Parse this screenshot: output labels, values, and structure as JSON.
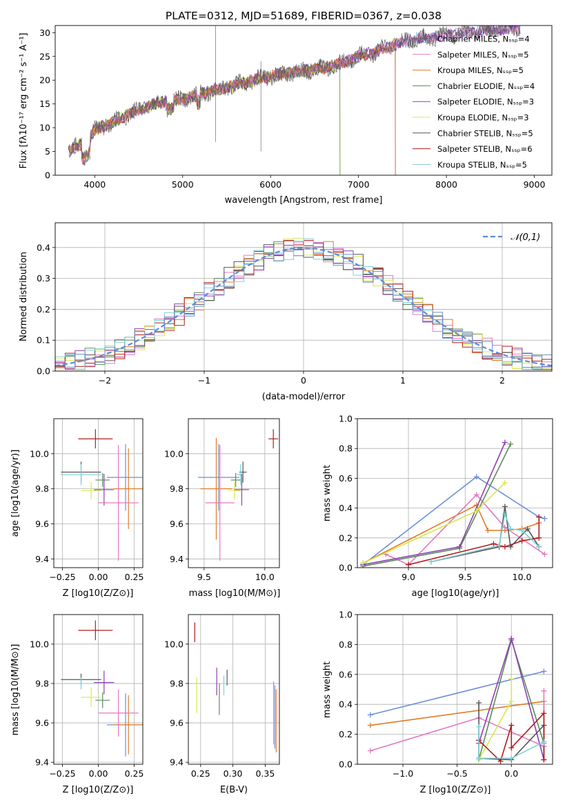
{
  "title": "PLATE=0312, MJD=51689, FIBERID=0367, z=0.038",
  "colors": {
    "c0": "#e377c2",
    "c1": "#e07b26",
    "c2": "#5a8a5a",
    "c3": "#8e3fb0",
    "c4": "#d8e84a",
    "c5": "#555555",
    "c6": "#b01c1c",
    "c7": "#80d0d8",
    "c8": "#6a8fd8",
    "grid": "#b0b0b0"
  },
  "chart_data": [
    {
      "type": "line",
      "title": "PLATE=0312, MJD=51689, FIBERID=0367, z=0.038",
      "xlabel": "wavelength [Angstrom, rest frame]",
      "ylabel": "Flux [fλ10⁻¹⁷ erg cm⁻² s⁻¹ A⁻¹]",
      "xlim": [
        3550,
        9200
      ],
      "ylim": [
        0,
        31.5
      ],
      "xticks": [
        "4000",
        "5000",
        "6000",
        "7000",
        "8000",
        "9000"
      ],
      "yticks": [
        "0",
        "5",
        "10",
        "15",
        "20",
        "25",
        "30"
      ],
      "legend_position": "top-right",
      "series": [
        {
          "name": "Chabrier MILES, N_SSP=4",
          "color": "#5a5a5a"
        },
        {
          "name": "Salpeter MILES, N_SSP=5",
          "color": "#e377c2"
        },
        {
          "name": "Kroupa MILES, N_SSP=5",
          "color": "#e07b26"
        },
        {
          "name": "Chabrier ELODIE, N_SSP=4",
          "color": "#5a8a5a"
        },
        {
          "name": "Salpeter ELODIE, N_SSP=3",
          "color": "#8e3fb0"
        },
        {
          "name": "Kroupa ELODIE, N_SSP=3",
          "color": "#d8e84a"
        },
        {
          "name": "Chabrier STELIB, N_SSP=5",
          "color": "#555555"
        },
        {
          "name": "Salpeter STELIB, N_SSP=6",
          "color": "#b01c1c"
        },
        {
          "name": "Kroupa STELIB, N_SSP=5",
          "color": "#80d0d8"
        }
      ],
      "continuum": {
        "x": [
          3700,
          3800,
          3900,
          4000,
          4200,
          4400,
          4600,
          4800,
          5000,
          5200,
          5400,
          5600,
          5800,
          6000,
          6200,
          6400,
          6600,
          6800,
          7000,
          7200,
          7400,
          7600,
          7800,
          8000,
          8200,
          8400,
          8600,
          8800
        ],
        "y": [
          5,
          6,
          7,
          9.5,
          11,
          13,
          14.5,
          15.5,
          16,
          17,
          18,
          19,
          20,
          20.8,
          21.5,
          22,
          22.5,
          23.5,
          25,
          26,
          27.5,
          28.5,
          29,
          29.5,
          30,
          30.3,
          30.6,
          31
        ]
      }
    },
    {
      "type": "bar",
      "xlabel": "(data-model)/error",
      "ylabel": "Normed distribution",
      "xlim": [
        -2.5,
        2.5
      ],
      "ylim": [
        0,
        0.48
      ],
      "xticks": [
        "−2",
        "−1",
        "0",
        "1",
        "2"
      ],
      "yticks": [
        "0.0",
        "0.1",
        "0.2",
        "0.3",
        "0.4"
      ],
      "legend": "𝒩(0,1)",
      "legend_position": "top-right",
      "bin_width": 0.1
    },
    {
      "type": "scatter",
      "xlabel": "Z [log10(Z/Z⊙)]",
      "ylabel": "age  [log10(age/yr)]",
      "xlim": [
        -0.31,
        0.31
      ],
      "ylim": [
        9.35,
        10.2
      ],
      "xticks": [
        "−0.25",
        "0.00",
        "0.25"
      ],
      "yticks": [
        "9.4",
        "9.6",
        "9.8",
        "10.0"
      ],
      "points": [
        {
          "x": -0.02,
          "y": 10.085,
          "xerr": 0.12,
          "yerr": 0.055,
          "color": "#b01c1c"
        },
        {
          "x": -0.12,
          "y": 9.895,
          "xerr": 0.14,
          "yerr": 0.06,
          "color": "#555555"
        },
        {
          "x": -0.12,
          "y": 9.88,
          "xerr": 0.14,
          "yerr": 0.06,
          "color": "#80d0d8"
        },
        {
          "x": 0.03,
          "y": 9.85,
          "xerr": 0.05,
          "yerr": 0.04,
          "color": "#5a8a5a"
        },
        {
          "x": -0.05,
          "y": 9.79,
          "xerr": 0.07,
          "yerr": 0.05,
          "color": "#d8e84a"
        },
        {
          "x": 0.04,
          "y": 9.795,
          "xerr": 0.07,
          "yerr": 0.09,
          "color": "#8e3fb0"
        },
        {
          "x": 0.19,
          "y": 9.865,
          "xerr": 0.13,
          "yerr": 0.19,
          "color": "#6a8fd8"
        },
        {
          "x": 0.21,
          "y": 9.8,
          "xerr": 0.1,
          "yerr": 0.23,
          "color": "#e07b26"
        },
        {
          "x": 0.14,
          "y": 9.72,
          "xerr": 0.14,
          "yerr": 0.33,
          "color": "#e377c2"
        }
      ]
    },
    {
      "type": "scatter",
      "xlabel": "mass [log10(M/M⊙)]",
      "ylabel": "",
      "xlim": [
        9.37,
        10.12
      ],
      "ylim": [
        9.35,
        10.2
      ],
      "xticks": [
        "9.5",
        "10.0"
      ],
      "yticks": [
        "9.4",
        "9.6",
        "9.8",
        "10.0"
      ],
      "points": [
        {
          "x": 10.07,
          "y": 10.085,
          "xerr": 0.04,
          "yerr": 0.055,
          "color": "#b01c1c"
        },
        {
          "x": 9.82,
          "y": 9.895,
          "xerr": 0.03,
          "yerr": 0.06,
          "color": "#555555"
        },
        {
          "x": 9.8,
          "y": 9.88,
          "xerr": 0.03,
          "yerr": 0.06,
          "color": "#80d0d8"
        },
        {
          "x": 9.76,
          "y": 9.85,
          "xerr": 0.04,
          "yerr": 0.04,
          "color": "#5a8a5a"
        },
        {
          "x": 9.75,
          "y": 9.79,
          "xerr": 0.05,
          "yerr": 0.05,
          "color": "#d8e84a"
        },
        {
          "x": 9.81,
          "y": 9.795,
          "xerr": 0.06,
          "yerr": 0.09,
          "color": "#8e3fb0"
        },
        {
          "x": 9.62,
          "y": 9.865,
          "xerr": 0.17,
          "yerr": 0.19,
          "color": "#6a8fd8"
        },
        {
          "x": 9.6,
          "y": 9.8,
          "xerr": 0.13,
          "yerr": 0.29,
          "color": "#e07b26"
        },
        {
          "x": 9.63,
          "y": 9.72,
          "xerr": 0.12,
          "yerr": 0.33,
          "color": "#e377c2"
        }
      ]
    },
    {
      "type": "line",
      "xlabel": "age  [log10(age/yr)]",
      "ylabel": "mass weight",
      "xlim": [
        8.55,
        10.27
      ],
      "ylim": [
        0,
        1.0
      ],
      "xticks": [
        "9.0",
        "9.5",
        "10.0"
      ],
      "yticks": [
        "0.0",
        "0.2",
        "0.4",
        "0.6",
        "0.8",
        "1.0"
      ],
      "series": [
        {
          "color": "#6a8fd8",
          "x": [
            8.6,
            9.6,
            10.15,
            10.2
          ],
          "y": [
            0.02,
            0.61,
            0.34,
            0.33
          ]
        },
        {
          "color": "#e07b26",
          "x": [
            8.6,
            9.6,
            9.7,
            9.85,
            10.0,
            10.15
          ],
          "y": [
            0.03,
            0.42,
            0.25,
            0.25,
            0.26,
            0.3
          ]
        },
        {
          "color": "#e377c2",
          "x": [
            8.8,
            9.0,
            9.6,
            9.85,
            10.2
          ],
          "y": [
            0.09,
            0.02,
            0.49,
            0.27,
            0.09
          ]
        },
        {
          "color": "#5a8a5a",
          "x": [
            8.6,
            9.45,
            9.9
          ],
          "y": [
            0.01,
            0.13,
            0.83
          ]
        },
        {
          "color": "#8e3fb0",
          "x": [
            8.6,
            9.45,
            9.85
          ],
          "y": [
            0.02,
            0.14,
            0.84
          ]
        },
        {
          "color": "#d8e84a",
          "x": [
            8.6,
            9.6,
            9.85
          ],
          "y": [
            0.03,
            0.38,
            0.57
          ]
        },
        {
          "color": "#555555",
          "x": [
            9.2,
            9.8,
            9.85,
            9.9,
            10.05,
            10.15
          ],
          "y": [
            0.04,
            0.14,
            0.41,
            0.14,
            0.26,
            0.14
          ]
        },
        {
          "color": "#b01c1c",
          "x": [
            9.0,
            9.75,
            9.85,
            10.0,
            10.15,
            10.15
          ],
          "y": [
            0.02,
            0.16,
            0.14,
            0.18,
            0.2,
            0.34
          ]
        },
        {
          "color": "#80d0d8",
          "x": [
            9.2,
            9.8,
            9.85,
            9.9,
            10.0,
            10.15
          ],
          "y": [
            0.04,
            0.15,
            0.36,
            0.26,
            0.25,
            0.14
          ]
        }
      ]
    },
    {
      "type": "scatter",
      "xlabel": "Z [log10(Z/Z⊙)]",
      "ylabel": "mass [log10(M/M⊙)]",
      "xlim": [
        -0.31,
        0.31
      ],
      "ylim": [
        9.39,
        10.15
      ],
      "xticks": [
        "−0.25",
        "0.00",
        "0.25"
      ],
      "yticks": [
        "9.4",
        "9.6",
        "9.8",
        "10.0"
      ],
      "points": [
        {
          "x": -0.02,
          "y": 10.07,
          "xerr": 0.12,
          "yerr": 0.05,
          "color": "#b01c1c"
        },
        {
          "x": -0.12,
          "y": 9.82,
          "xerr": 0.14,
          "yerr": 0.03,
          "color": "#555555"
        },
        {
          "x": -0.12,
          "y": 9.8,
          "xerr": 0.14,
          "yerr": 0.03,
          "color": "#80d0d8"
        },
        {
          "x": 0.03,
          "y": 9.715,
          "xerr": 0.05,
          "yerr": 0.04,
          "color": "#5a8a5a"
        },
        {
          "x": -0.05,
          "y": 9.73,
          "xerr": 0.07,
          "yerr": 0.05,
          "color": "#d8e84a"
        },
        {
          "x": 0.04,
          "y": 9.805,
          "xerr": 0.07,
          "yerr": 0.06,
          "color": "#8e3fb0"
        },
        {
          "x": 0.19,
          "y": 9.59,
          "xerr": 0.13,
          "yerr": 0.16,
          "color": "#6a8fd8"
        },
        {
          "x": 0.21,
          "y": 9.59,
          "xerr": 0.1,
          "yerr": 0.15,
          "color": "#e07b26"
        },
        {
          "x": 0.14,
          "y": 9.65,
          "xerr": 0.14,
          "yerr": 0.12,
          "color": "#e377c2"
        }
      ]
    },
    {
      "type": "scatter",
      "xlabel": "E(B-V)",
      "ylabel": "",
      "xlim": [
        0.231,
        0.372
      ],
      "ylim": [
        9.39,
        10.15
      ],
      "xticks": [
        "0.25",
        "0.30",
        "0.35"
      ],
      "yticks": [
        "9.4",
        "9.6",
        "9.8",
        "10.0"
      ],
      "points": [
        {
          "x": 0.241,
          "y": 10.06,
          "yerr": 0.05,
          "color": "#b01c1c"
        },
        {
          "x": 0.244,
          "y": 9.74,
          "yerr": 0.09,
          "color": "#d8e84a"
        },
        {
          "x": 0.275,
          "y": 9.81,
          "yerr": 0.07,
          "color": "#8e3fb0"
        },
        {
          "x": 0.279,
          "y": 9.72,
          "yerr": 0.08,
          "color": "#5a8a5a"
        },
        {
          "x": 0.286,
          "y": 9.79,
          "yerr": 0.05,
          "color": "#80d0d8"
        },
        {
          "x": 0.291,
          "y": 9.83,
          "yerr": 0.04,
          "color": "#555555"
        },
        {
          "x": 0.363,
          "y": 9.65,
          "yerr": 0.16,
          "color": "#e377c2"
        },
        {
          "x": 0.365,
          "y": 9.63,
          "yerr": 0.16,
          "color": "#6a8fd8"
        },
        {
          "x": 0.367,
          "y": 9.61,
          "yerr": 0.16,
          "color": "#e07b26"
        }
      ]
    },
    {
      "type": "line",
      "xlabel": "Z [log10(Z/Z⊙)]",
      "ylabel": "mass weight",
      "xlim": [
        -1.42,
        0.38
      ],
      "ylim": [
        0,
        1.0
      ],
      "xticks": [
        "−1.0",
        "−0.5",
        "0.0"
      ],
      "yticks": [
        "0.0",
        "0.2",
        "0.4",
        "0.6",
        "0.8",
        "1.0"
      ],
      "series": [
        {
          "color": "#6a8fd8",
          "x": [
            -1.3,
            0.3
          ],
          "y": [
            0.33,
            0.62
          ]
        },
        {
          "color": "#e07b26",
          "x": [
            -1.3,
            0.3,
            0.3
          ],
          "y": [
            0.26,
            0.42,
            0.03
          ]
        },
        {
          "color": "#e377c2",
          "x": [
            -1.3,
            -0.3,
            0.3,
            0.3
          ],
          "y": [
            0.09,
            0.31,
            0.12,
            0.49
          ]
        },
        {
          "color": "#5a8a5a",
          "x": [
            -0.3,
            0.0,
            0.3
          ],
          "y": [
            0.03,
            0.83,
            0.14
          ]
        },
        {
          "color": "#8e3fb0",
          "x": [
            -0.3,
            0.0,
            0.3,
            0.3
          ],
          "y": [
            0.14,
            0.84,
            0.03,
            0.14
          ]
        },
        {
          "color": "#d8e84a",
          "x": [
            -0.3,
            0.0,
            0.0
          ],
          "y": [
            0.03,
            0.42,
            0.57
          ]
        },
        {
          "color": "#555555",
          "x": [
            -0.3,
            -0.3,
            0.0,
            0.3,
            0.3
          ],
          "y": [
            0.41,
            0.04,
            0.03,
            0.26,
            0.14
          ]
        },
        {
          "color": "#b01c1c",
          "x": [
            -0.3,
            -0.1,
            0.0,
            0.0,
            0.3,
            0.3
          ],
          "y": [
            0.16,
            0.02,
            0.26,
            0.11,
            0.34,
            0.03
          ]
        },
        {
          "color": "#80d0d8",
          "x": [
            -0.3,
            -0.3,
            0.0,
            0.3,
            0.3
          ],
          "y": [
            0.25,
            0.04,
            0.04,
            0.15,
            0.14
          ]
        }
      ]
    }
  ]
}
